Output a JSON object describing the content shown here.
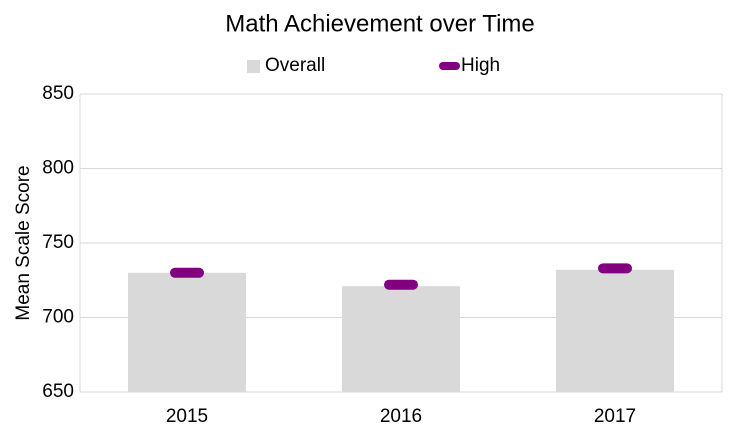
{
  "chart_data": {
    "type": "bar",
    "title": "Math Achievement over Time",
    "y_label": "Mean Scale Score",
    "categories": [
      "2015",
      "2016",
      "2017"
    ],
    "series": [
      {
        "name": "Overall",
        "type": "bar",
        "color": "#d9d9d9",
        "values": [
          730,
          721,
          732
        ]
      },
      {
        "name": "High",
        "type": "marker",
        "color": "#800080",
        "values": [
          730,
          722,
          733
        ]
      }
    ],
    "ylim": [
      650,
      850
    ],
    "yticks": [
      650,
      700,
      750,
      800,
      850
    ],
    "grid": true,
    "legend": "top"
  }
}
